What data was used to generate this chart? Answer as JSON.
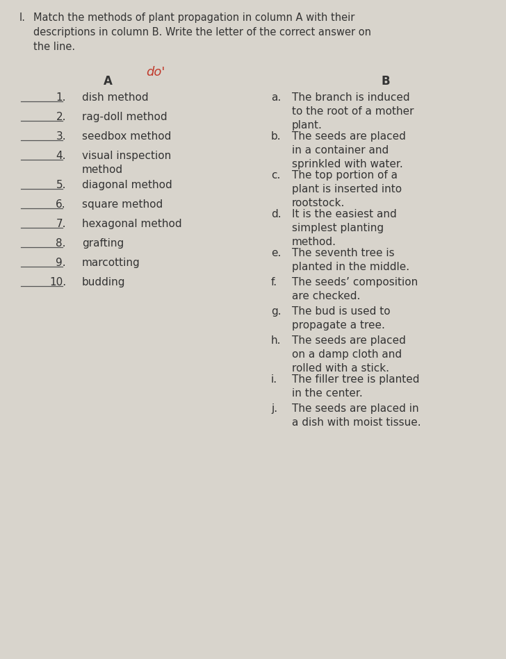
{
  "bg_color": "#d8d4cc",
  "text_color": "#333333",
  "title_number": "I.",
  "title_text": "Match the methods of plant propagation in column A with their\ndescriptions in column B. Write the letter of the correct answer on\nthe line.",
  "handwriting": "do'",
  "col_a_header": "A",
  "col_b_header": "B",
  "col_a_items": [
    "1.   dish method",
    "2.   rag-doll method",
    "3.   seedbox method",
    "4.   visual inspection\n       method",
    "5.   diagonal method",
    "6.   square method",
    "7.   hexagonal method",
    "8.   grafting",
    "9.   marcotting",
    "10.  budding"
  ],
  "col_b_items": [
    [
      "a.",
      "The branch is induced\nto the root of a mother\nplant."
    ],
    [
      "b.",
      "The seeds are placed\nin a container and\nsprinkled with water."
    ],
    [
      "c.",
      "The top portion of a\nplant is inserted into\nrootstock."
    ],
    [
      "d.",
      "It is the easiest and\nsimplest planting\nmethod."
    ],
    [
      "e.",
      "The seventh tree is\nplanted in the middle."
    ],
    [
      "f.",
      "The seeds’ composition\nare checked."
    ],
    [
      "g.",
      "The bud is used to\npropagate a tree."
    ],
    [
      "h.",
      "The seeds are placed\non a damp cloth and\nrolled with a stick."
    ],
    [
      "i.",
      "The filler tree is planted\nin the center."
    ],
    [
      "j.",
      "The seeds are placed in\na dish with moist tissue."
    ]
  ],
  "line_color": "#555555",
  "handwriting_color": "#c0392b",
  "font_size_title": 10.5,
  "font_size_body": 11.0,
  "font_size_header": 12.0,
  "font_size_handwriting": 13.0
}
